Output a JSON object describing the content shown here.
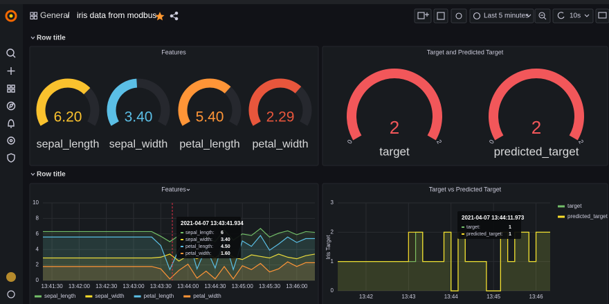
{
  "header": {
    "folder": "General",
    "separator": "/",
    "title": "iris data from modbus",
    "time_range": "Last 5 minutes",
    "refresh_interval": "10s"
  },
  "rows": [
    "Row title",
    "Row title"
  ],
  "features_gauges": {
    "type": "gauge",
    "title": "Features",
    "names": [
      "sepal_length",
      "sepal_width",
      "petal_length",
      "petal_width"
    ],
    "values": [
      6.2,
      3.4,
      5.4,
      2.29
    ],
    "value_labels": [
      "6.20",
      "3.40",
      "5.40",
      "2.29"
    ],
    "min": 0,
    "max": [
      9,
      7,
      8,
      3.4
    ],
    "colors": [
      "#fac22e",
      "#5bbfe6",
      "#ff9537",
      "#e8563c"
    ]
  },
  "target_gauges": {
    "type": "gauge",
    "title": "Target and Predicted Target",
    "names": [
      "target",
      "predicted_target"
    ],
    "values": [
      2,
      2
    ],
    "min": 0,
    "max": 2,
    "color": "#f2575a"
  },
  "features_chart": {
    "type": "line",
    "title": "Features",
    "categories": [
      null,
      "13:41:30",
      null,
      null,
      "13:42:00",
      null,
      null,
      "13:42:30",
      null,
      null,
      "13:43:00",
      null,
      null,
      "13:43:30",
      null,
      null,
      "13:44:00",
      null,
      null,
      "13:44:30",
      null,
      null,
      "13:45:00",
      null,
      null,
      "13:45:30",
      null,
      null,
      "13:46:00",
      null,
      null
    ],
    "ylim": [
      0,
      10
    ],
    "yticks": [
      0,
      2,
      4,
      6,
      8,
      10
    ],
    "grid": true,
    "step": false,
    "series": [
      {
        "name": "sepal_length",
        "color": "#73bf69",
        "values": [
          6.3,
          6.3,
          6.3,
          6.3,
          6.3,
          6.3,
          6.3,
          6.3,
          6.3,
          6.3,
          6.3,
          6.3,
          6.3,
          5.7,
          5.0,
          5.8,
          6.4,
          4.9,
          5.7,
          5.0,
          6.5,
          5.2,
          6.0,
          5.8,
          6.7,
          5.6,
          6.1,
          6.4,
          5.9,
          6.3,
          6.2
        ]
      },
      {
        "name": "sepal_width",
        "color": "#fade2a",
        "values": [
          2.9,
          2.9,
          2.9,
          2.9,
          2.9,
          2.9,
          2.9,
          2.9,
          2.9,
          2.9,
          2.9,
          2.9,
          2.9,
          3.0,
          3.4,
          2.5,
          3.2,
          2.8,
          3.5,
          2.9,
          3.8,
          3.0,
          2.7,
          3.3,
          3.1,
          2.9,
          3.4,
          3.0,
          2.8,
          3.2,
          3.4
        ]
      },
      {
        "name": "petal_length",
        "color": "#5bbfe6",
        "values": [
          5.6,
          5.6,
          5.6,
          5.6,
          5.6,
          5.6,
          5.6,
          5.6,
          5.6,
          5.6,
          5.6,
          5.6,
          5.6,
          4.5,
          1.4,
          4.0,
          5.6,
          1.5,
          4.2,
          1.6,
          5.5,
          1.4,
          5.1,
          4.4,
          5.8,
          3.9,
          4.7,
          5.6,
          4.9,
          5.4,
          5.4
        ]
      },
      {
        "name": "petal_width",
        "color": "#ff9537",
        "values": [
          1.8,
          1.8,
          1.8,
          1.8,
          1.8,
          1.8,
          1.8,
          1.8,
          1.8,
          1.8,
          1.8,
          1.8,
          1.8,
          1.5,
          0.2,
          1.3,
          2.1,
          0.3,
          1.2,
          0.2,
          1.8,
          0.2,
          1.9,
          1.4,
          2.2,
          1.1,
          1.5,
          2.4,
          1.8,
          2.3,
          2.29
        ]
      }
    ],
    "tooltip": {
      "time": "2021-04-07 13:43:41.934",
      "rows": [
        {
          "name": "sepal_length:",
          "value": "6"
        },
        {
          "name": "sepal_width:",
          "value": "3.40"
        },
        {
          "name": "petal_length:",
          "value": "4.50"
        },
        {
          "name": "petal_width:",
          "value": "1.60"
        }
      ]
    }
  },
  "target_chart": {
    "type": "line",
    "title": "Target vs Predicted Target",
    "y_label": "Iris Target",
    "categories": [
      null,
      null,
      null,
      null,
      "13:42",
      null,
      null,
      null,
      null,
      null,
      "13:43",
      null,
      null,
      null,
      null,
      null,
      "13:44",
      null,
      null,
      null,
      null,
      null,
      "13:45",
      null,
      null,
      null,
      null,
      null,
      "13:46",
      null,
      null
    ],
    "ylim": [
      0,
      3
    ],
    "yticks": [
      0,
      1,
      2,
      3
    ],
    "grid": true,
    "step": true,
    "series": [
      {
        "name": "target",
        "color": "#73bf69",
        "values": [
          1,
          1,
          1,
          1,
          1,
          1,
          1,
          1,
          1,
          1,
          1,
          2,
          1,
          1,
          1,
          2,
          0,
          2,
          1,
          1,
          1,
          0,
          0,
          2,
          1,
          2,
          2,
          1,
          2,
          2,
          2
        ]
      },
      {
        "name": "predicted_target",
        "color": "#fade2a",
        "values": [
          1,
          1,
          1,
          1,
          1,
          1,
          1,
          1,
          1,
          1,
          2,
          2,
          1,
          1,
          1,
          2,
          0,
          2,
          1,
          1,
          1,
          0,
          0,
          2,
          1,
          2,
          2,
          1,
          2,
          2,
          2
        ]
      }
    ],
    "tooltip": {
      "time": "2021-04-07 13:44:11.973",
      "rows": [
        {
          "name": "target:",
          "value": "1"
        },
        {
          "name": "predicted_target:",
          "value": "1"
        }
      ]
    }
  }
}
